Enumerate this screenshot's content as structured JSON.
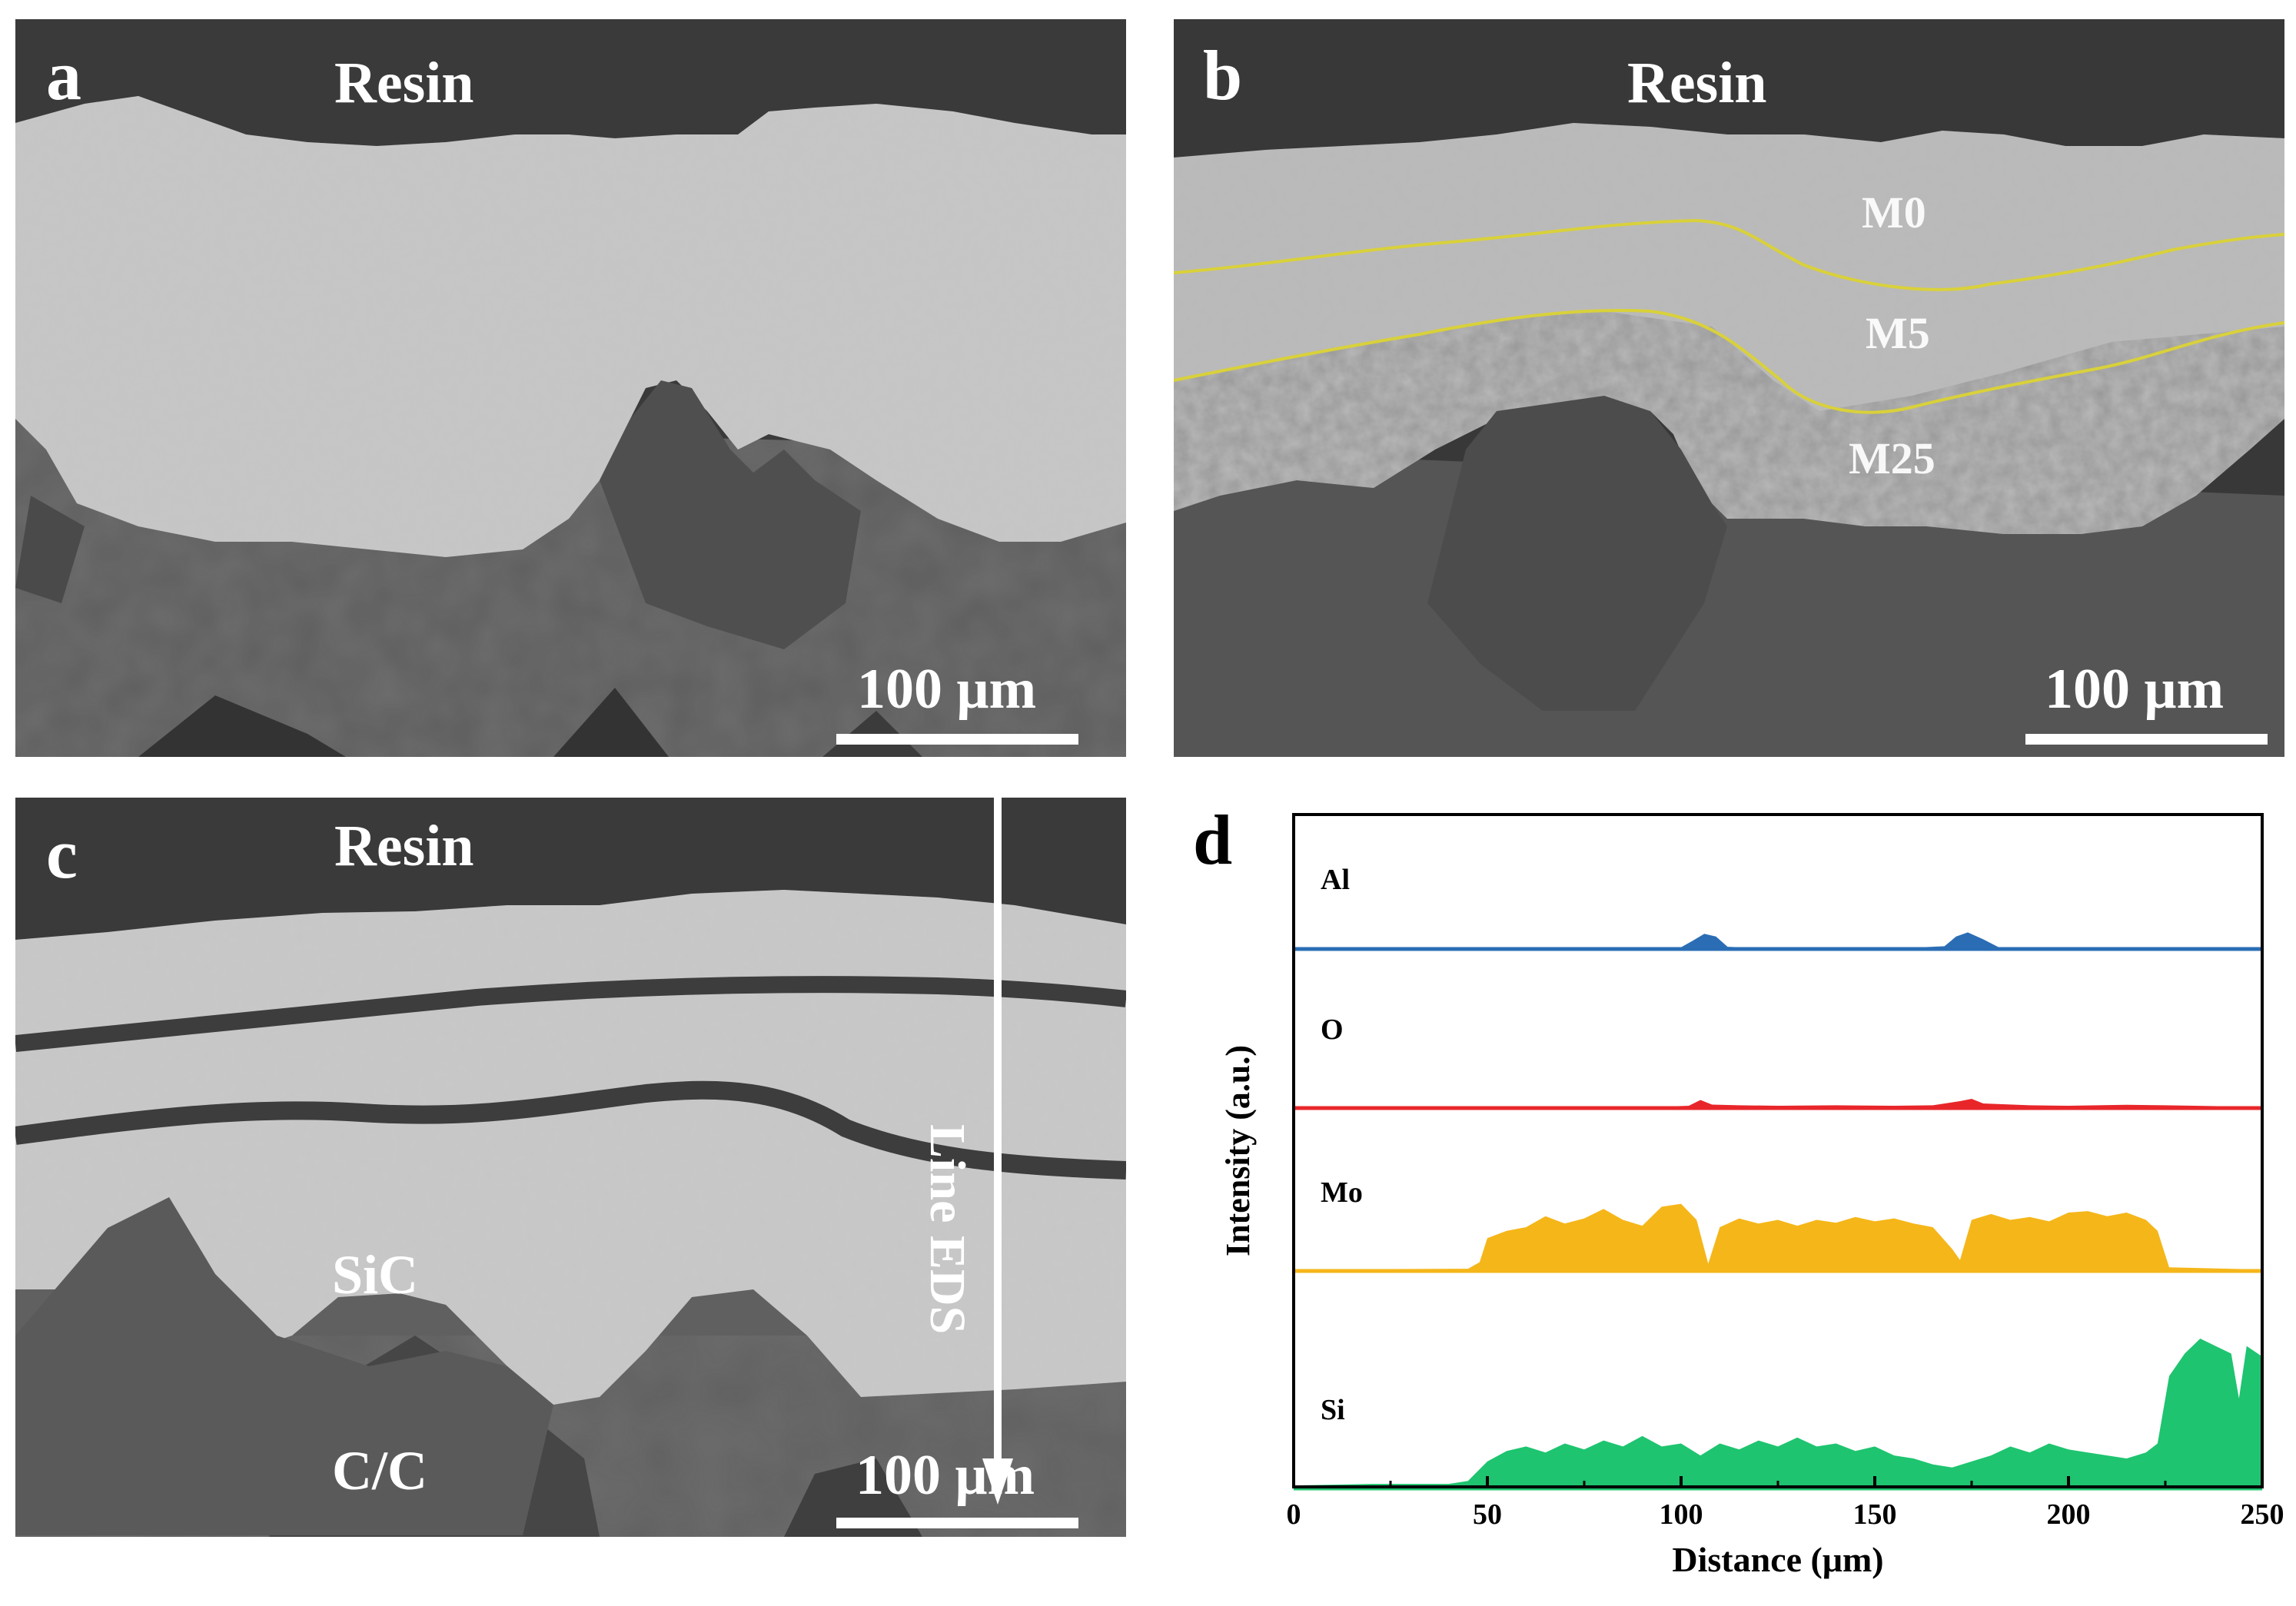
{
  "panels": {
    "a": {
      "letter": "a",
      "resin_label": "Resin",
      "scale_label": "100 μm"
    },
    "b": {
      "letter": "b",
      "resin_label": "Resin",
      "scale_label": "100 μm",
      "layer_labels": [
        "M0",
        "M5",
        "M25"
      ],
      "boundary_color": "#d9d13a"
    },
    "c": {
      "letter": "c",
      "resin_label": "Resin",
      "scale_label": "100 μm",
      "sic_label": "SiC",
      "cc_label": "C/C",
      "line_label": "Line EDS"
    },
    "d": {
      "letter": "d"
    }
  },
  "chart_data": {
    "type": "area",
    "xlabel": "Distance (μm)",
    "ylabel": "Intensity (a.u.)",
    "xlim": [
      0,
      250
    ],
    "xticks": [
      0,
      50,
      100,
      150,
      200,
      250
    ],
    "grid": false,
    "series": [
      {
        "name": "Al",
        "color": "#2a6db5",
        "points": [
          [
            0,
            0.02
          ],
          [
            40,
            0.03
          ],
          [
            45,
            0.05
          ],
          [
            60,
            0.03
          ],
          [
            80,
            0.04
          ],
          [
            95,
            0.05
          ],
          [
            100,
            0.06
          ],
          [
            103,
            0.3
          ],
          [
            106,
            0.55
          ],
          [
            109,
            0.45
          ],
          [
            112,
            0.08
          ],
          [
            120,
            0.04
          ],
          [
            140,
            0.05
          ],
          [
            160,
            0.05
          ],
          [
            168,
            0.1
          ],
          [
            171,
            0.45
          ],
          [
            174,
            0.6
          ],
          [
            178,
            0.35
          ],
          [
            182,
            0.06
          ],
          [
            200,
            0.04
          ],
          [
            220,
            0.04
          ],
          [
            240,
            0.05
          ],
          [
            250,
            0.03
          ]
        ]
      },
      {
        "name": "O",
        "color": "#e8262a",
        "points": [
          [
            0,
            0.02
          ],
          [
            40,
            0.04
          ],
          [
            60,
            0.06
          ],
          [
            80,
            0.05
          ],
          [
            95,
            0.06
          ],
          [
            102,
            0.1
          ],
          [
            105,
            0.35
          ],
          [
            108,
            0.15
          ],
          [
            115,
            0.12
          ],
          [
            125,
            0.1
          ],
          [
            140,
            0.12
          ],
          [
            155,
            0.1
          ],
          [
            165,
            0.12
          ],
          [
            172,
            0.3
          ],
          [
            175,
            0.4
          ],
          [
            178,
            0.2
          ],
          [
            190,
            0.12
          ],
          [
            200,
            0.1
          ],
          [
            215,
            0.14
          ],
          [
            225,
            0.12
          ],
          [
            240,
            0.08
          ],
          [
            250,
            0.05
          ]
        ]
      },
      {
        "name": "Mo",
        "color": "#f5b619",
        "points": [
          [
            0,
            0.02
          ],
          [
            45,
            0.03
          ],
          [
            48,
            0.12
          ],
          [
            50,
            0.45
          ],
          [
            55,
            0.55
          ],
          [
            60,
            0.6
          ],
          [
            65,
            0.75
          ],
          [
            70,
            0.65
          ],
          [
            75,
            0.72
          ],
          [
            80,
            0.85
          ],
          [
            85,
            0.7
          ],
          [
            90,
            0.62
          ],
          [
            95,
            0.88
          ],
          [
            100,
            0.92
          ],
          [
            104,
            0.7
          ],
          [
            107,
            0.1
          ],
          [
            110,
            0.6
          ],
          [
            115,
            0.72
          ],
          [
            120,
            0.65
          ],
          [
            125,
            0.7
          ],
          [
            130,
            0.62
          ],
          [
            135,
            0.7
          ],
          [
            140,
            0.66
          ],
          [
            145,
            0.74
          ],
          [
            150,
            0.68
          ],
          [
            155,
            0.72
          ],
          [
            160,
            0.65
          ],
          [
            165,
            0.6
          ],
          [
            170,
            0.3
          ],
          [
            172,
            0.15
          ],
          [
            175,
            0.7
          ],
          [
            180,
            0.78
          ],
          [
            185,
            0.7
          ],
          [
            190,
            0.74
          ],
          [
            195,
            0.68
          ],
          [
            200,
            0.8
          ],
          [
            205,
            0.82
          ],
          [
            210,
            0.75
          ],
          [
            215,
            0.8
          ],
          [
            220,
            0.7
          ],
          [
            223,
            0.55
          ],
          [
            226,
            0.05
          ],
          [
            250,
            0.02
          ]
        ]
      },
      {
        "name": "Si",
        "color": "#1ec46f",
        "points": [
          [
            0,
            0.02
          ],
          [
            20,
            0.03
          ],
          [
            40,
            0.03
          ],
          [
            45,
            0.05
          ],
          [
            50,
            0.18
          ],
          [
            55,
            0.25
          ],
          [
            60,
            0.28
          ],
          [
            65,
            0.24
          ],
          [
            70,
            0.3
          ],
          [
            75,
            0.26
          ],
          [
            80,
            0.32
          ],
          [
            85,
            0.28
          ],
          [
            90,
            0.35
          ],
          [
            95,
            0.28
          ],
          [
            100,
            0.3
          ],
          [
            105,
            0.22
          ],
          [
            110,
            0.3
          ],
          [
            115,
            0.26
          ],
          [
            120,
            0.32
          ],
          [
            125,
            0.28
          ],
          [
            130,
            0.34
          ],
          [
            135,
            0.28
          ],
          [
            140,
            0.3
          ],
          [
            145,
            0.25
          ],
          [
            150,
            0.28
          ],
          [
            155,
            0.22
          ],
          [
            160,
            0.2
          ],
          [
            165,
            0.16
          ],
          [
            170,
            0.14
          ],
          [
            175,
            0.18
          ],
          [
            180,
            0.22
          ],
          [
            185,
            0.28
          ],
          [
            190,
            0.24
          ],
          [
            195,
            0.3
          ],
          [
            200,
            0.26
          ],
          [
            205,
            0.24
          ],
          [
            210,
            0.22
          ],
          [
            215,
            0.2
          ],
          [
            220,
            0.24
          ],
          [
            223,
            0.3
          ],
          [
            226,
            0.75
          ],
          [
            230,
            0.9
          ],
          [
            234,
            1.0
          ],
          [
            238,
            0.95
          ],
          [
            242,
            0.9
          ],
          [
            244,
            0.6
          ],
          [
            246,
            0.95
          ],
          [
            250,
            0.88
          ]
        ]
      }
    ]
  }
}
